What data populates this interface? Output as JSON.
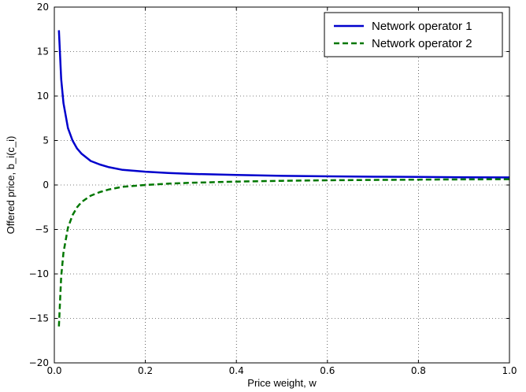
{
  "chart_data": {
    "type": "line",
    "xlabel": "Price weight, w",
    "ylabel": "Offered price, b_i(c_i)",
    "xlim": [
      0.0,
      1.0
    ],
    "ylim": [
      -20,
      20
    ],
    "xticks": [
      "0.0",
      "0.2",
      "0.4",
      "0.6",
      "0.8",
      "1.0"
    ],
    "yticks": [
      "20",
      "15",
      "10",
      "5",
      "0",
      "−5",
      "−10",
      "−15",
      "−20"
    ],
    "grid": true,
    "legend_position": "top-right",
    "series": [
      {
        "name": "Network operator 1",
        "color": "#0000cc",
        "style": "solid",
        "x": [
          0.01,
          0.015,
          0.02,
          0.03,
          0.04,
          0.05,
          0.06,
          0.08,
          0.1,
          0.12,
          0.15,
          0.2,
          0.25,
          0.3,
          0.4,
          0.5,
          0.6,
          0.7,
          0.8,
          0.9,
          1.0
        ],
        "y": [
          17.4,
          11.9,
          9.2,
          6.4,
          5.0,
          4.1,
          3.5,
          2.7,
          2.3,
          2.0,
          1.7,
          1.5,
          1.35,
          1.25,
          1.12,
          1.03,
          0.97,
          0.93,
          0.9,
          0.87,
          0.85
        ]
      },
      {
        "name": "Network operator 2",
        "color": "#007700",
        "style": "dashed",
        "x": [
          0.01,
          0.015,
          0.02,
          0.03,
          0.04,
          0.05,
          0.06,
          0.08,
          0.1,
          0.12,
          0.15,
          0.2,
          0.25,
          0.3,
          0.4,
          0.5,
          0.6,
          0.7,
          0.8,
          0.9,
          1.0
        ],
        "y": [
          -15.9,
          -10.3,
          -7.6,
          -4.8,
          -3.4,
          -2.5,
          -1.9,
          -1.2,
          -0.8,
          -0.5,
          -0.2,
          0.0,
          0.15,
          0.25,
          0.38,
          0.47,
          0.53,
          0.57,
          0.6,
          0.63,
          0.65
        ]
      }
    ]
  }
}
